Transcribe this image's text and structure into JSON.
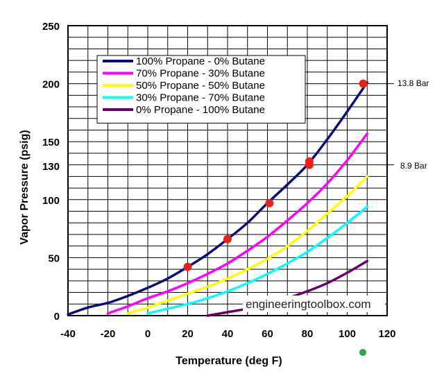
{
  "chart_data": {
    "type": "line",
    "xlabel": "Temperature (deg F)",
    "ylabel": "Vapor Pressure (psig)",
    "xlim": [
      -40,
      120
    ],
    "ylim": [
      0,
      250
    ],
    "xticks": [
      -40,
      -20,
      0,
      20,
      40,
      60,
      80,
      100,
      120
    ],
    "yticks": [
      0,
      50,
      100,
      150,
      200,
      250
    ],
    "grid": true,
    "legend_position": "top-left",
    "series": [
      {
        "name": "100% Propane - 0% Butane",
        "color": "#0b0b7a",
        "x": [
          -40,
          -30,
          -20,
          -10,
          0,
          10,
          20,
          30,
          40,
          50,
          60,
          70,
          80,
          90,
          100,
          110
        ],
        "y": [
          1,
          7,
          11,
          17,
          24,
          32,
          42,
          53,
          66,
          80,
          97,
          113,
          130,
          152,
          176,
          201
        ]
      },
      {
        "name": "70% Propane - 30% Butane",
        "color": "#ff00ff",
        "x": [
          -20,
          -10,
          0,
          10,
          20,
          30,
          40,
          50,
          60,
          70,
          80,
          90,
          100,
          110
        ],
        "y": [
          2,
          8,
          15,
          21,
          28,
          36,
          45,
          56,
          68,
          82,
          97,
          114,
          134,
          157
        ]
      },
      {
        "name": "50% Propane - 50% Butane",
        "color": "#ffff00",
        "x": [
          -10,
          0,
          10,
          20,
          30,
          40,
          50,
          60,
          70,
          80,
          90,
          100,
          110
        ],
        "y": [
          2,
          7,
          13,
          19,
          25,
          32,
          40,
          49,
          60,
          73,
          88,
          103,
          120
        ]
      },
      {
        "name": "30% Propane - 70% Butane",
        "color": "#00ffff",
        "x": [
          0,
          10,
          20,
          30,
          40,
          50,
          60,
          70,
          80,
          90,
          100,
          110
        ],
        "y": [
          2,
          6,
          10,
          15,
          21,
          28,
          36,
          45,
          55,
          67,
          80,
          94
        ]
      },
      {
        "name": "0% Propane - 100% Butane",
        "color": "#660066",
        "x": [
          30,
          40,
          50,
          60,
          70,
          80,
          90,
          100,
          110
        ],
        "y": [
          0,
          3,
          6,
          10,
          15,
          21,
          28,
          37,
          47
        ]
      }
    ],
    "markers": [
      {
        "x": 20,
        "y": 42
      },
      {
        "x": 40,
        "y": 66
      },
      {
        "x": 61,
        "y": 97
      },
      {
        "x": 81,
        "y": 130
      },
      {
        "x": 81,
        "y": 133
      },
      {
        "x": 108,
        "y": 200
      }
    ],
    "marker_color": "#e8211a",
    "green_dot_color": "#22aa44",
    "annotations": [
      {
        "text": "13.8 Bar",
        "y": 200,
        "tick_char": "-"
      },
      {
        "text": "130",
        "y": 130
      },
      {
        "text": "8.9 Bar",
        "y": 130,
        "tick_char": "-"
      }
    ],
    "watermark": "engineeringtoolbox.com"
  }
}
